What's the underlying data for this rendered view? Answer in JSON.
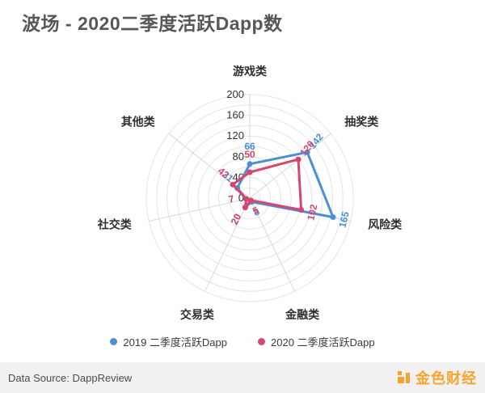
{
  "title": "波场 - 2020二季度活跃Dapp数",
  "footer": {
    "source": "Data Source: DappReview",
    "logo_text": "金色财经",
    "logo_color": "#f5a52f"
  },
  "chart_data": {
    "type": "radar",
    "title": "波场 - 2020二季度活跃Dapp数",
    "categories": [
      "游戏类",
      "抽奖类",
      "风险类",
      "金融类",
      "交易类",
      "社交类",
      "其他类"
    ],
    "series": [
      {
        "name": "2019 二季度活跃Dapp",
        "color": "#4a90d2",
        "values": [
          66,
          142,
          165,
          8,
          20,
          7,
          31
        ]
      },
      {
        "name": "2020 二季度活跃Dapp",
        "color": "#d5476f",
        "values": [
          50,
          120,
          102,
          5,
          20,
          7,
          42
        ]
      }
    ],
    "max": 200,
    "ring_step": 20,
    "radial_ticks": [
      0,
      40,
      80,
      120,
      160,
      200
    ],
    "grid": true,
    "grid_color": "#e4e4e4",
    "spoke_color": "#d9d9d9",
    "tick_color": "#333333",
    "category_color": "#2f2f2f",
    "legend_position": "bottom"
  }
}
